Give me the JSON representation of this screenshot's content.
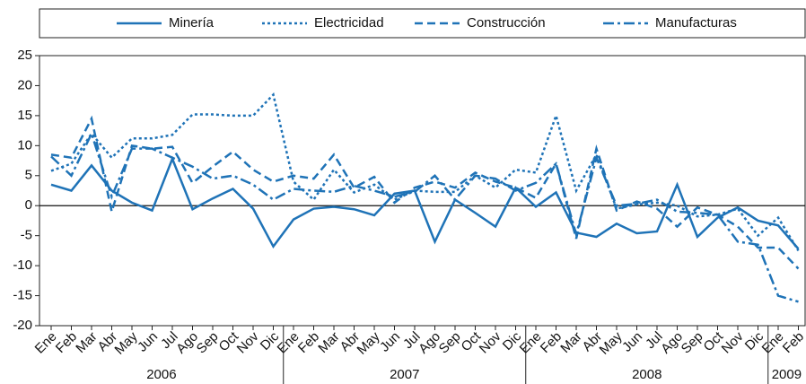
{
  "chart_data": {
    "type": "line",
    "categories": [
      "Ene",
      "Feb",
      "Mar",
      "Abr",
      "May",
      "Jun",
      "Jul",
      "Ago",
      "Sep",
      "Oct",
      "Nov",
      "Dic",
      "Ene",
      "Feb",
      "Mar",
      "Abr",
      "May",
      "Jun",
      "Jul",
      "Ago",
      "Sep",
      "Oct",
      "Nov",
      "Dic",
      "Ene",
      "Feb",
      "Mar",
      "Abr",
      "May",
      "Jun",
      "Jul",
      "Ago",
      "Sep",
      "Oct",
      "Nov",
      "Dic",
      "Ene",
      "Feb"
    ],
    "years": [
      "2006",
      "2007",
      "2008",
      "2009"
    ],
    "ylim": [
      -20,
      25
    ],
    "yticks": [
      -20,
      -15,
      -10,
      -5,
      0,
      5,
      10,
      15,
      20,
      25
    ],
    "grid": false,
    "series": [
      {
        "name": "Minería",
        "color": "#1f73b7",
        "dash": "solid",
        "values": [
          3.5,
          2.5,
          6.7,
          2.5,
          0.5,
          -0.8,
          7.8,
          -0.6,
          1.2,
          2.8,
          -0.5,
          -6.8,
          -2.3,
          -0.5,
          -0.2,
          -0.6,
          -1.6,
          2.0,
          2.5,
          -6.0,
          1.0,
          -1.2,
          -3.5,
          3.0,
          -0.2,
          2.2,
          -4.5,
          -5.2,
          -3.0,
          -4.6,
          -4.3,
          3.5,
          -5.2,
          -2.0,
          -0.3,
          -2.5,
          -3.3,
          -7.2
        ]
      },
      {
        "name": "Electricidad",
        "color": "#1f73b7",
        "dash": "dotted",
        "values": [
          5.8,
          7.0,
          12.0,
          8.0,
          11.2,
          11.2,
          11.8,
          15.2,
          15.2,
          15.0,
          15.0,
          18.5,
          4.0,
          1.0,
          6.0,
          2.2,
          3.5,
          1.0,
          2.5,
          2.3,
          2.3,
          5.0,
          3.0,
          6.0,
          5.5,
          15.0,
          2.5,
          8.5,
          -0.5,
          0.2,
          0.5,
          0.0,
          -1.8,
          -1.5,
          -0.5,
          -5.0,
          -2.0,
          -7.5
        ]
      },
      {
        "name": "Construcción",
        "color": "#1f73b7",
        "dash": "dashed",
        "values": [
          8.5,
          8.0,
          14.5,
          -1.0,
          10.0,
          9.5,
          9.8,
          3.8,
          6.5,
          9.0,
          6.0,
          4.0,
          5.0,
          4.5,
          8.5,
          3.0,
          4.8,
          0.5,
          3.0,
          4.0,
          3.0,
          5.5,
          4.0,
          3.0,
          1.3,
          7.0,
          -5.5,
          9.5,
          -0.8,
          0.7,
          -0.5,
          -3.5,
          -0.3,
          -1.5,
          -3.5,
          -7.0,
          -7.0,
          -10.5
        ]
      },
      {
        "name": "Manufacturas",
        "color": "#1f73b7",
        "dash": "dashdot",
        "values": [
          8.2,
          5.0,
          12.0,
          1.5,
          9.5,
          9.5,
          8.0,
          6.5,
          4.5,
          5.0,
          3.5,
          1.0,
          2.8,
          2.5,
          2.3,
          3.3,
          2.5,
          1.5,
          2.3,
          5.0,
          1.0,
          5.0,
          4.5,
          2.5,
          3.8,
          7.0,
          -4.8,
          8.0,
          0.0,
          0.3,
          1.0,
          -1.0,
          -1.2,
          -1.5,
          -6.0,
          -6.5,
          -15.0,
          -16.0
        ]
      }
    ]
  }
}
